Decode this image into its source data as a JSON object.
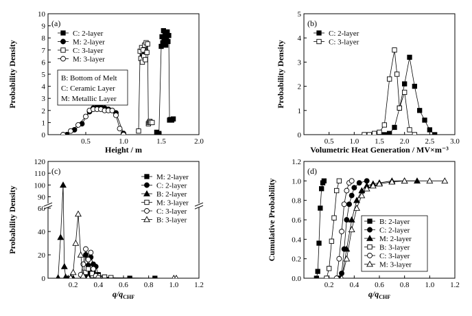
{
  "chart_data": [
    {
      "id": "a",
      "type": "line",
      "panel_label": "(a)",
      "xlabel": "Height / m",
      "ylabel": "Probability Density",
      "xlim": [
        0,
        2.0
      ],
      "ylim": [
        0,
        10
      ],
      "xticks": [
        "0.5",
        "1.0",
        "1.5",
        "2.0"
      ],
      "yticks": [
        "0",
        "1",
        "2",
        "3",
        "4",
        "5",
        "6",
        "7",
        "8",
        "9",
        "10"
      ],
      "legend": "top-left",
      "annotation_lines": [
        "B: Bottom of Melt",
        "C: Ceramic Layer",
        "M: Metallic Layer"
      ],
      "series": [
        {
          "name": "C: 2-layer",
          "marker": "square-filled",
          "x": [
            1.44,
            1.47,
            1.5,
            1.51,
            1.52,
            1.53,
            1.54,
            1.55,
            1.56,
            1.57,
            1.58,
            1.59,
            1.6,
            1.61,
            1.62,
            1.64,
            1.66
          ],
          "y": [
            0.2,
            0.1,
            7.3,
            8.1,
            7.6,
            8.6,
            7.8,
            8.3,
            7.4,
            8.0,
            8.5,
            7.7,
            8.2,
            1.2,
            1.25,
            1.2,
            1.3
          ]
        },
        {
          "name": "M: 2-layer",
          "marker": "circle-filled",
          "x": [
            0.25,
            0.35,
            0.45,
            0.55,
            0.6,
            0.65,
            0.7,
            0.75,
            0.8,
            0.85,
            0.9,
            1.0
          ],
          "y": [
            0.0,
            0.4,
            0.9,
            1.9,
            2.2,
            2.3,
            2.3,
            2.2,
            2.1,
            2.0,
            1.8,
            0.1
          ]
        },
        {
          "name": "C: 3-layer",
          "marker": "square-open",
          "x": [
            1.2,
            1.22,
            1.23,
            1.24,
            1.25,
            1.26,
            1.27,
            1.28,
            1.29,
            1.3,
            1.31,
            1.32,
            1.33,
            1.34,
            1.35,
            1.36,
            1.38
          ],
          "y": [
            0.3,
            6.9,
            6.3,
            7.2,
            6.0,
            7.0,
            6.5,
            7.4,
            6.2,
            7.6,
            6.8,
            7.5,
            0.9,
            1.0,
            1.1,
            1.0,
            1.0
          ]
        },
        {
          "name": "M: 3-layer",
          "marker": "circle-open",
          "x": [
            0.2,
            0.3,
            0.4,
            0.5,
            0.55,
            0.6,
            0.65,
            0.7,
            0.75,
            0.8,
            0.85,
            0.9,
            0.95,
            1.0
          ],
          "y": [
            0.0,
            0.3,
            0.8,
            1.5,
            2.0,
            2.1,
            2.1,
            2.1,
            2.0,
            2.0,
            2.0,
            1.6,
            0.5,
            0.0
          ]
        }
      ]
    },
    {
      "id": "b",
      "type": "line",
      "panel_label": "(b)",
      "xlabel": "Volumetric Heat Generation / MV×m⁻³",
      "ylabel": "Probability Density",
      "xlim": [
        0,
        3.0
      ],
      "ylim": [
        0,
        5
      ],
      "xticks": [
        "0.5",
        "1.0",
        "1.5",
        "2.0",
        "2.5",
        "3.0"
      ],
      "yticks": [
        "0",
        "1",
        "2",
        "3",
        "4",
        "5"
      ],
      "legend": "top-left",
      "series": [
        {
          "name": "C: 2-layer",
          "marker": "square-filled",
          "x": [
            1.6,
            1.7,
            1.8,
            1.9,
            2.0,
            2.1,
            2.2,
            2.3,
            2.4,
            2.5,
            2.6
          ],
          "y": [
            0.0,
            0.05,
            0.3,
            1.1,
            2.1,
            3.2,
            2.0,
            1.0,
            0.6,
            0.2,
            0.0
          ]
        },
        {
          "name": "C: 3-layer",
          "marker": "square-open",
          "x": [
            1.2,
            1.3,
            1.4,
            1.5,
            1.6,
            1.7,
            1.8,
            1.85,
            1.9,
            2.0,
            2.1,
            2.2
          ],
          "y": [
            0.0,
            0.0,
            0.05,
            0.1,
            0.4,
            2.3,
            3.5,
            2.5,
            1.1,
            1.75,
            0.2,
            0.0
          ]
        }
      ]
    },
    {
      "id": "c",
      "type": "line",
      "panel_label": "(c)",
      "xlabel": "q/q",
      "xlabel_sub": "CHF",
      "ylabel": "Probability Density",
      "xlim": [
        0,
        1.2
      ],
      "xticks": [
        "0.2",
        "0.4",
        "0.6",
        "0.8",
        "1.0",
        "1.2"
      ],
      "yticks": [
        "0",
        "20",
        "40",
        "60",
        "90",
        "100",
        "110",
        "120"
      ],
      "axis_break": "y between 60 and 85",
      "legend": "top-right",
      "series": [
        {
          "name": "M: 2-layer",
          "marker": "square-filled",
          "x": [
            0.3,
            0.32,
            0.34,
            0.36,
            0.4,
            0.45,
            0.5,
            0.65,
            0.85
          ],
          "y": [
            0.5,
            3.0,
            6.0,
            5.0,
            3.0,
            1.0,
            0.5,
            0.0,
            0.0
          ]
        },
        {
          "name": "C: 2-layer",
          "marker": "circle-filled",
          "x": [
            0.28,
            0.3,
            0.32,
            0.34,
            0.36,
            0.38,
            0.4,
            0.45
          ],
          "y": [
            2.0,
            20.0,
            11.0,
            18.0,
            12.0,
            10.0,
            3.0,
            0.5
          ]
        },
        {
          "name": "B: 2-layer",
          "marker": "triangle-filled",
          "x": [
            0.08,
            0.1,
            0.12,
            0.13,
            0.14,
            0.16,
            0.2
          ],
          "y": [
            0.5,
            35.0,
            100.0,
            10.0,
            1.0,
            0.0,
            0.0
          ]
        },
        {
          "name": "M: 3-layer",
          "marker": "square-open",
          "x": [
            0.28,
            0.3,
            0.32,
            0.35,
            0.4,
            0.45,
            0.5
          ],
          "y": [
            1.0,
            5.0,
            8.0,
            4.0,
            2.0,
            1.0,
            0.5
          ]
        },
        {
          "name": "C: 3-layer",
          "marker": "circle-open",
          "x": [
            0.26,
            0.28,
            0.3,
            0.32,
            0.34,
            0.36,
            0.38,
            0.4
          ],
          "y": [
            3.0,
            12.0,
            25.0,
            16.0,
            22.0,
            8.0,
            2.0,
            0.5
          ]
        },
        {
          "name": "B: 3-layer",
          "marker": "triangle-open",
          "x": [
            0.18,
            0.2,
            0.22,
            0.24,
            0.26,
            0.28,
            0.32,
            1.0,
            1.02
          ],
          "y": [
            0.5,
            5.0,
            30.0,
            55.0,
            20.0,
            2.0,
            0.5,
            0.0,
            0.0
          ]
        }
      ]
    },
    {
      "id": "d",
      "type": "line",
      "panel_label": "(d)",
      "xlabel": "q/q",
      "xlabel_sub": "CHF",
      "ylabel": "Cumulative Probability",
      "xlim": [
        0,
        1.2
      ],
      "ylim": [
        0,
        1.2
      ],
      "xticks": [
        "0.2",
        "0.4",
        "0.6",
        "0.8",
        "1.0",
        "1.2"
      ],
      "yticks": [
        "0.0",
        "0.2",
        "0.4",
        "0.6",
        "0.8",
        "1.0",
        "1.2"
      ],
      "legend": "bottom-right",
      "series": [
        {
          "name": "B: 2-layer",
          "marker": "square-filled",
          "x": [
            0.1,
            0.11,
            0.12,
            0.13,
            0.14,
            0.15,
            0.16
          ],
          "y": [
            0.0,
            0.07,
            0.36,
            0.72,
            0.92,
            0.98,
            1.0
          ]
        },
        {
          "name": "C: 2-layer",
          "marker": "circle-filled",
          "x": [
            0.28,
            0.3,
            0.32,
            0.34,
            0.36,
            0.38,
            0.4,
            0.44,
            0.5
          ],
          "y": [
            0.0,
            0.05,
            0.3,
            0.6,
            0.76,
            0.85,
            0.93,
            0.98,
            1.0
          ]
        },
        {
          "name": "M: 2-layer",
          "marker": "triangle-filled",
          "x": [
            0.3,
            0.34,
            0.38,
            0.42,
            0.46,
            0.5,
            0.55,
            0.6,
            0.7,
            0.8,
            0.9
          ],
          "y": [
            0.0,
            0.3,
            0.6,
            0.8,
            0.9,
            0.95,
            0.97,
            0.98,
            1.0,
            1.0,
            1.0
          ]
        },
        {
          "name": "B: 3-layer",
          "marker": "square-open",
          "x": [
            0.18,
            0.2,
            0.22,
            0.24,
            0.26,
            0.28
          ],
          "y": [
            0.0,
            0.1,
            0.38,
            0.62,
            0.9,
            1.0
          ]
        },
        {
          "name": "C: 3-layer",
          "marker": "circle-open",
          "x": [
            0.26,
            0.28,
            0.3,
            0.32,
            0.34,
            0.36,
            0.38
          ],
          "y": [
            0.0,
            0.2,
            0.48,
            0.76,
            0.9,
            0.98,
            1.0
          ]
        },
        {
          "name": "M: 3-layer",
          "marker": "triangle-open",
          "x": [
            0.3,
            0.34,
            0.38,
            0.42,
            0.46,
            0.5,
            0.55,
            0.6,
            0.7,
            0.8,
            1.0,
            1.12
          ],
          "y": [
            0.0,
            0.2,
            0.5,
            0.72,
            0.85,
            0.92,
            0.95,
            0.97,
            0.99,
            1.0,
            1.0,
            1.0
          ]
        }
      ]
    }
  ]
}
